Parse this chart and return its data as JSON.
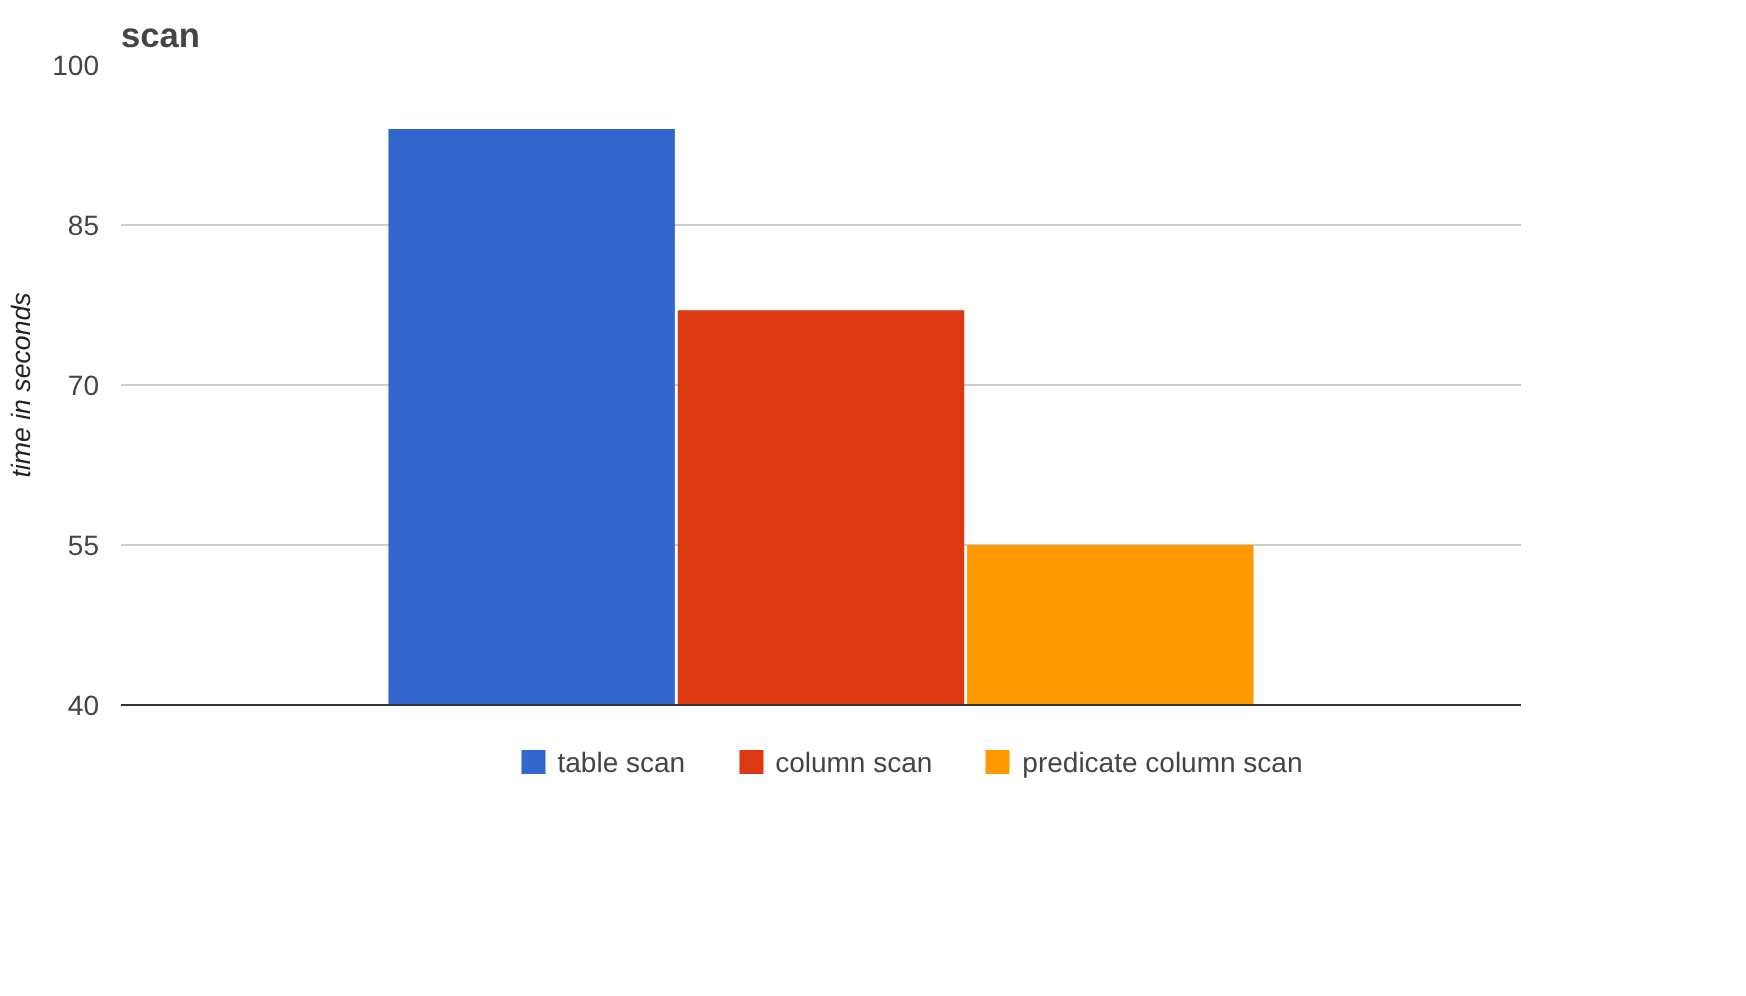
{
  "chart_data": {
    "type": "bar",
    "title": "scan",
    "ylabel": "time in seconds",
    "categories": [
      null
    ],
    "series": [
      {
        "name": "table scan",
        "color": "#3366cc",
        "values": [
          94
        ]
      },
      {
        "name": "column scan",
        "color": "#dc3912",
        "values": [
          77
        ]
      },
      {
        "name": "predicate column scan",
        "color": "#ff9900",
        "values": [
          55
        ]
      }
    ],
    "ylim": [
      40,
      100
    ],
    "yticks": [
      40,
      55,
      70,
      85,
      100
    ],
    "grid": "y",
    "legend": "bottom"
  }
}
